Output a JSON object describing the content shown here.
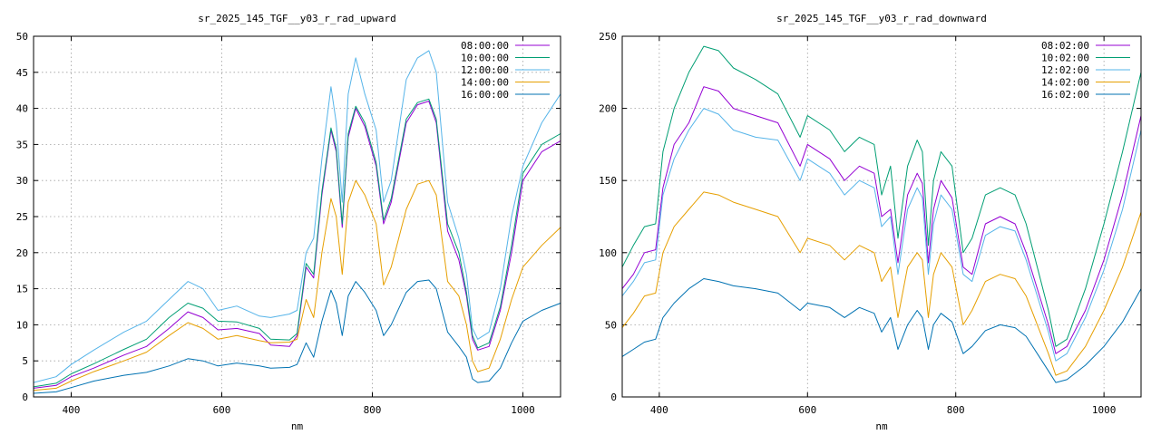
{
  "chart_data": [
    {
      "type": "line",
      "title": "sr_2025_145_TGF__y03_r_rad_upward",
      "xlabel": "nm",
      "ylabel": "",
      "xlim": [
        350,
        1050
      ],
      "ylim": [
        0,
        50
      ],
      "xticks": [
        400,
        600,
        800,
        1000
      ],
      "yticks": [
        0,
        5,
        10,
        15,
        20,
        25,
        30,
        35,
        40,
        45,
        50
      ],
      "grid": true,
      "legend_position": "top-right",
      "x": [
        350,
        380,
        400,
        430,
        470,
        500,
        530,
        555,
        575,
        595,
        620,
        650,
        665,
        690,
        700,
        712,
        722,
        733,
        745,
        752,
        760,
        768,
        778,
        790,
        805,
        815,
        825,
        845,
        860,
        875,
        885,
        900,
        915,
        925,
        933,
        940,
        955,
        970,
        985,
        1000,
        1025,
        1050
      ],
      "series": [
        {
          "name": "08:00:00",
          "color": "#9400d3",
          "values": [
            1.2,
            1.6,
            2.8,
            4.0,
            5.8,
            7.0,
            9.5,
            11.8,
            11.0,
            9.3,
            9.5,
            8.8,
            7.2,
            7.0,
            8.5,
            18.0,
            16.5,
            28.0,
            37.0,
            34.0,
            23.5,
            36.0,
            40.0,
            37.5,
            32.0,
            24.0,
            27.0,
            38.0,
            40.5,
            41.0,
            38.0,
            23.0,
            19.0,
            14.0,
            8.0,
            6.5,
            7.0,
            12.0,
            20.0,
            30.0,
            34.0,
            35.5
          ]
        },
        {
          "name": "10:00:00",
          "color": "#009e73",
          "values": [
            1.4,
            1.9,
            3.2,
            4.6,
            6.6,
            8.0,
            11.0,
            13.0,
            12.3,
            10.5,
            10.4,
            9.5,
            8.0,
            7.9,
            8.8,
            18.5,
            17.0,
            28.5,
            37.3,
            34.5,
            24.0,
            36.5,
            40.3,
            38.0,
            32.5,
            24.5,
            27.5,
            38.5,
            40.8,
            41.3,
            38.5,
            24.0,
            20.0,
            14.5,
            8.5,
            6.8,
            7.5,
            12.5,
            21.0,
            31.0,
            35.0,
            36.5
          ]
        },
        {
          "name": "12:00:00",
          "color": "#56b4e9",
          "values": [
            2.0,
            2.8,
            4.5,
            6.5,
            9.0,
            10.5,
            13.5,
            16.0,
            15.0,
            12.0,
            12.6,
            11.2,
            11.0,
            11.5,
            12.0,
            20.0,
            22.0,
            33.0,
            43.0,
            38.0,
            27.0,
            42.0,
            47.0,
            42.0,
            37.0,
            27.0,
            30.0,
            44.0,
            47.0,
            48.0,
            45.0,
            27.0,
            22.0,
            17.0,
            9.5,
            8.0,
            9.0,
            15.0,
            25.0,
            32.0,
            38.0,
            42.0
          ]
        },
        {
          "name": "14:00:00",
          "color": "#e69f00",
          "values": [
            0.9,
            1.2,
            2.2,
            3.5,
            5.0,
            6.2,
            8.5,
            10.3,
            9.5,
            8.0,
            8.5,
            7.8,
            7.5,
            7.6,
            8.0,
            13.5,
            11.0,
            20.0,
            27.5,
            25.0,
            17.0,
            27.0,
            30.0,
            28.0,
            24.0,
            15.5,
            18.0,
            26.0,
            29.5,
            30.0,
            28.0,
            16.0,
            14.0,
            10.0,
            5.0,
            3.5,
            4.0,
            8.0,
            13.5,
            18.0,
            21.0,
            23.5
          ]
        },
        {
          "name": "16:00:00",
          "color": "#0072b2",
          "values": [
            0.5,
            0.7,
            1.3,
            2.2,
            3.0,
            3.4,
            4.3,
            5.3,
            5.0,
            4.3,
            4.7,
            4.3,
            4.0,
            4.1,
            4.5,
            7.5,
            5.5,
            10.5,
            14.8,
            13.0,
            8.5,
            14.0,
            16.0,
            14.5,
            12.0,
            8.5,
            10.0,
            14.5,
            16.0,
            16.2,
            15.0,
            9.0,
            7.0,
            5.5,
            2.5,
            2.0,
            2.2,
            4.0,
            7.5,
            10.5,
            12.0,
            13.0
          ]
        }
      ]
    },
    {
      "type": "line",
      "title": "sr_2025_145_TGF__y03_r_rad_downward",
      "xlabel": "nm",
      "ylabel": "",
      "xlim": [
        350,
        1050
      ],
      "ylim": [
        0,
        250
      ],
      "xticks": [
        400,
        600,
        800,
        1000
      ],
      "yticks": [
        0,
        50,
        100,
        150,
        200,
        250
      ],
      "grid": true,
      "legend_position": "top-right",
      "x": [
        350,
        365,
        380,
        395,
        405,
        420,
        440,
        460,
        480,
        500,
        530,
        560,
        590,
        600,
        630,
        650,
        670,
        690,
        700,
        712,
        722,
        735,
        748,
        755,
        763,
        770,
        780,
        795,
        810,
        822,
        840,
        860,
        880,
        895,
        910,
        925,
        935,
        950,
        975,
        1000,
        1025,
        1050
      ],
      "series": [
        {
          "name": "08:02:00",
          "color": "#9400d3",
          "values": [
            75,
            85,
            100,
            102,
            145,
            175,
            190,
            215,
            212,
            200,
            195,
            190,
            160,
            175,
            165,
            150,
            160,
            155,
            125,
            130,
            93,
            140,
            155,
            148,
            93,
            130,
            150,
            138,
            90,
            85,
            120,
            125,
            120,
            100,
            75,
            50,
            30,
            35,
            60,
            95,
            140,
            195
          ]
        },
        {
          "name": "10:02:00",
          "color": "#009e73",
          "values": [
            90,
            105,
            118,
            120,
            170,
            200,
            225,
            243,
            240,
            228,
            220,
            210,
            180,
            195,
            185,
            170,
            180,
            175,
            140,
            160,
            110,
            160,
            178,
            170,
            105,
            150,
            170,
            160,
            100,
            110,
            140,
            145,
            140,
            120,
            90,
            60,
            35,
            40,
            75,
            120,
            170,
            225
          ]
        },
        {
          "name": "12:02:00",
          "color": "#56b4e9",
          "values": [
            70,
            80,
            93,
            95,
            140,
            165,
            185,
            200,
            196,
            185,
            180,
            178,
            150,
            165,
            155,
            140,
            150,
            145,
            118,
            125,
            85,
            130,
            145,
            138,
            85,
            120,
            140,
            130,
            85,
            80,
            112,
            118,
            115,
            95,
            70,
            45,
            25,
            30,
            55,
            88,
            130,
            185
          ]
        },
        {
          "name": "14:02:00",
          "color": "#e69f00",
          "values": [
            48,
            58,
            70,
            72,
            100,
            118,
            130,
            142,
            140,
            135,
            130,
            125,
            100,
            110,
            105,
            95,
            105,
            100,
            80,
            90,
            55,
            90,
            100,
            95,
            55,
            85,
            100,
            90,
            50,
            60,
            80,
            85,
            82,
            70,
            50,
            30,
            15,
            18,
            35,
            60,
            90,
            128
          ]
        },
        {
          "name": "16:02:00",
          "color": "#0072b2",
          "values": [
            28,
            33,
            38,
            40,
            55,
            65,
            75,
            82,
            80,
            77,
            75,
            72,
            60,
            65,
            62,
            55,
            62,
            58,
            45,
            55,
            33,
            50,
            60,
            55,
            33,
            50,
            58,
            52,
            30,
            35,
            46,
            50,
            48,
            42,
            30,
            18,
            10,
            12,
            22,
            35,
            52,
            75
          ]
        }
      ]
    }
  ]
}
